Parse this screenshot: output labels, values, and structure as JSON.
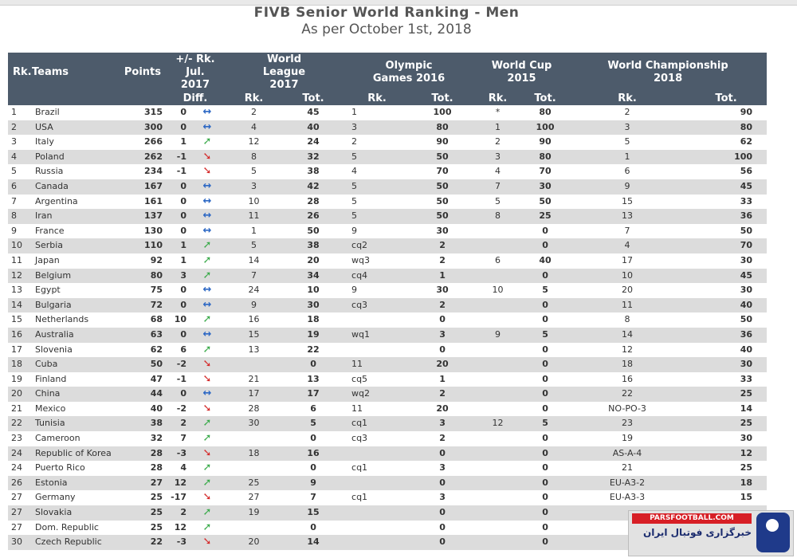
{
  "title": "FIVB Senior World Ranking - Men",
  "subtitle": "As per October 1st, 2018",
  "header": {
    "rk": "Rk.",
    "teams": "Teams",
    "points": "Points",
    "diff_group": "+/- Rk. Jul. 2017",
    "diff": "Diff.",
    "wl": "World League 2017",
    "og": "Olympic Games 2016",
    "wc": "World Cup 2015",
    "wch": "World Championship 2018",
    "sub_rk": "Rk.",
    "sub_tot": "Tot."
  },
  "rows": [
    {
      "rk": "1",
      "team": "Brazil",
      "points": "315",
      "diff": "0",
      "trend": "same",
      "wl_rk": "2",
      "wl_tot": "45",
      "og_rk": "1",
      "og_tot": "100",
      "wc_rk": "*",
      "wc_tot": "80",
      "ch_rk": "2",
      "ch_tot": "90"
    },
    {
      "rk": "2",
      "team": "USA",
      "points": "300",
      "diff": "0",
      "trend": "same",
      "wl_rk": "4",
      "wl_tot": "40",
      "og_rk": "3",
      "og_tot": "80",
      "wc_rk": "1",
      "wc_tot": "100",
      "ch_rk": "3",
      "ch_tot": "80"
    },
    {
      "rk": "3",
      "team": "Italy",
      "points": "266",
      "diff": "1",
      "trend": "up",
      "wl_rk": "12",
      "wl_tot": "24",
      "og_rk": "2",
      "og_tot": "90",
      "wc_rk": "2",
      "wc_tot": "90",
      "ch_rk": "5",
      "ch_tot": "62"
    },
    {
      "rk": "4",
      "team": "Poland",
      "points": "262",
      "diff": "-1",
      "trend": "down",
      "wl_rk": "8",
      "wl_tot": "32",
      "og_rk": "5",
      "og_tot": "50",
      "wc_rk": "3",
      "wc_tot": "80",
      "ch_rk": "1",
      "ch_tot": "100"
    },
    {
      "rk": "5",
      "team": "Russia",
      "points": "234",
      "diff": "-1",
      "trend": "down",
      "wl_rk": "5",
      "wl_tot": "38",
      "og_rk": "4",
      "og_tot": "70",
      "wc_rk": "4",
      "wc_tot": "70",
      "ch_rk": "6",
      "ch_tot": "56"
    },
    {
      "rk": "6",
      "team": "Canada",
      "points": "167",
      "diff": "0",
      "trend": "same",
      "wl_rk": "3",
      "wl_tot": "42",
      "og_rk": "5",
      "og_tot": "50",
      "wc_rk": "7",
      "wc_tot": "30",
      "ch_rk": "9",
      "ch_tot": "45"
    },
    {
      "rk": "7",
      "team": "Argentina",
      "points": "161",
      "diff": "0",
      "trend": "same",
      "wl_rk": "10",
      "wl_tot": "28",
      "og_rk": "5",
      "og_tot": "50",
      "wc_rk": "5",
      "wc_tot": "50",
      "ch_rk": "15",
      "ch_tot": "33"
    },
    {
      "rk": "8",
      "team": "Iran",
      "points": "137",
      "diff": "0",
      "trend": "same",
      "wl_rk": "11",
      "wl_tot": "26",
      "og_rk": "5",
      "og_tot": "50",
      "wc_rk": "8",
      "wc_tot": "25",
      "ch_rk": "13",
      "ch_tot": "36"
    },
    {
      "rk": "9",
      "team": "France",
      "points": "130",
      "diff": "0",
      "trend": "same",
      "wl_rk": "1",
      "wl_tot": "50",
      "og_rk": "9",
      "og_tot": "30",
      "wc_rk": "",
      "wc_tot": "0",
      "ch_rk": "7",
      "ch_tot": "50"
    },
    {
      "rk": "10",
      "team": "Serbia",
      "points": "110",
      "diff": "1",
      "trend": "up",
      "wl_rk": "5",
      "wl_tot": "38",
      "og_rk": "cq2",
      "og_tot": "2",
      "wc_rk": "",
      "wc_tot": "0",
      "ch_rk": "4",
      "ch_tot": "70"
    },
    {
      "rk": "11",
      "team": "Japan",
      "points": "92",
      "diff": "1",
      "trend": "up",
      "wl_rk": "14",
      "wl_tot": "20",
      "og_rk": "wq3",
      "og_tot": "2",
      "wc_rk": "6",
      "wc_tot": "40",
      "ch_rk": "17",
      "ch_tot": "30"
    },
    {
      "rk": "12",
      "team": "Belgium",
      "points": "80",
      "diff": "3",
      "trend": "up",
      "wl_rk": "7",
      "wl_tot": "34",
      "og_rk": "cq4",
      "og_tot": "1",
      "wc_rk": "",
      "wc_tot": "0",
      "ch_rk": "10",
      "ch_tot": "45"
    },
    {
      "rk": "13",
      "team": "Egypt",
      "points": "75",
      "diff": "0",
      "trend": "same",
      "wl_rk": "24",
      "wl_tot": "10",
      "og_rk": "9",
      "og_tot": "30",
      "wc_rk": "10",
      "wc_tot": "5",
      "ch_rk": "20",
      "ch_tot": "30"
    },
    {
      "rk": "14",
      "team": "Bulgaria",
      "points": "72",
      "diff": "0",
      "trend": "same",
      "wl_rk": "9",
      "wl_tot": "30",
      "og_rk": "cq3",
      "og_tot": "2",
      "wc_rk": "",
      "wc_tot": "0",
      "ch_rk": "11",
      "ch_tot": "40"
    },
    {
      "rk": "15",
      "team": "Netherlands",
      "points": "68",
      "diff": "10",
      "trend": "up",
      "wl_rk": "16",
      "wl_tot": "18",
      "og_rk": "",
      "og_tot": "0",
      "wc_rk": "",
      "wc_tot": "0",
      "ch_rk": "8",
      "ch_tot": "50"
    },
    {
      "rk": "16",
      "team": "Australia",
      "points": "63",
      "diff": "0",
      "trend": "same",
      "wl_rk": "15",
      "wl_tot": "19",
      "og_rk": "wq1",
      "og_tot": "3",
      "wc_rk": "9",
      "wc_tot": "5",
      "ch_rk": "14",
      "ch_tot": "36"
    },
    {
      "rk": "17",
      "team": "Slovenia",
      "points": "62",
      "diff": "6",
      "trend": "up",
      "wl_rk": "13",
      "wl_tot": "22",
      "og_rk": "",
      "og_tot": "0",
      "wc_rk": "",
      "wc_tot": "0",
      "ch_rk": "12",
      "ch_tot": "40"
    },
    {
      "rk": "18",
      "team": "Cuba",
      "points": "50",
      "diff": "-2",
      "trend": "down",
      "wl_rk": "",
      "wl_tot": "0",
      "og_rk": "11",
      "og_tot": "20",
      "wc_rk": "",
      "wc_tot": "0",
      "ch_rk": "18",
      "ch_tot": "30"
    },
    {
      "rk": "19",
      "team": "Finland",
      "points": "47",
      "diff": "-1",
      "trend": "down",
      "wl_rk": "21",
      "wl_tot": "13",
      "og_rk": "cq5",
      "og_tot": "1",
      "wc_rk": "",
      "wc_tot": "0",
      "ch_rk": "16",
      "ch_tot": "33"
    },
    {
      "rk": "20",
      "team": "China",
      "points": "44",
      "diff": "0",
      "trend": "same",
      "wl_rk": "17",
      "wl_tot": "17",
      "og_rk": "wq2",
      "og_tot": "2",
      "wc_rk": "",
      "wc_tot": "0",
      "ch_rk": "22",
      "ch_tot": "25"
    },
    {
      "rk": "21",
      "team": "Mexico",
      "points": "40",
      "diff": "-2",
      "trend": "down",
      "wl_rk": "28",
      "wl_tot": "6",
      "og_rk": "11",
      "og_tot": "20",
      "wc_rk": "",
      "wc_tot": "0",
      "ch_rk": "NO-PO-3",
      "ch_tot": "14"
    },
    {
      "rk": "22",
      "team": "Tunisia",
      "points": "38",
      "diff": "2",
      "trend": "up",
      "wl_rk": "30",
      "wl_tot": "5",
      "og_rk": "cq1",
      "og_tot": "3",
      "wc_rk": "12",
      "wc_tot": "5",
      "ch_rk": "23",
      "ch_tot": "25"
    },
    {
      "rk": "23",
      "team": "Cameroon",
      "points": "32",
      "diff": "7",
      "trend": "up",
      "wl_rk": "",
      "wl_tot": "0",
      "og_rk": "cq3",
      "og_tot": "2",
      "wc_rk": "",
      "wc_tot": "0",
      "ch_rk": "19",
      "ch_tot": "30"
    },
    {
      "rk": "24",
      "team": "Republic of Korea",
      "points": "28",
      "diff": "-3",
      "trend": "down",
      "wl_rk": "18",
      "wl_tot": "16",
      "og_rk": "",
      "og_tot": "0",
      "wc_rk": "",
      "wc_tot": "0",
      "ch_rk": "AS-A-4",
      "ch_tot": "12"
    },
    {
      "rk": "24",
      "team": "Puerto Rico",
      "points": "28",
      "diff": "4",
      "trend": "up",
      "wl_rk": "",
      "wl_tot": "0",
      "og_rk": "cq1",
      "og_tot": "3",
      "wc_rk": "",
      "wc_tot": "0",
      "ch_rk": "21",
      "ch_tot": "25"
    },
    {
      "rk": "26",
      "team": "Estonia",
      "points": "27",
      "diff": "12",
      "trend": "up",
      "wl_rk": "25",
      "wl_tot": "9",
      "og_rk": "",
      "og_tot": "0",
      "wc_rk": "",
      "wc_tot": "0",
      "ch_rk": "EU-A3-2",
      "ch_tot": "18"
    },
    {
      "rk": "27",
      "team": "Germany",
      "points": "25",
      "diff": "-17",
      "trend": "down",
      "wl_rk": "27",
      "wl_tot": "7",
      "og_rk": "cq1",
      "og_tot": "3",
      "wc_rk": "",
      "wc_tot": "0",
      "ch_rk": "EU-A3-3",
      "ch_tot": "15"
    },
    {
      "rk": "27",
      "team": "Slovakia",
      "points": "25",
      "diff": "2",
      "trend": "up",
      "wl_rk": "19",
      "wl_tot": "15",
      "og_rk": "",
      "og_tot": "0",
      "wc_rk": "",
      "wc_tot": "0",
      "ch_rk": "",
      "ch_tot": ""
    },
    {
      "rk": "27",
      "team": "Dom. Republic",
      "points": "25",
      "diff": "12",
      "trend": "up",
      "wl_rk": "",
      "wl_tot": "0",
      "og_rk": "",
      "og_tot": "0",
      "wc_rk": "",
      "wc_tot": "0",
      "ch_rk": "",
      "ch_tot": ""
    },
    {
      "rk": "30",
      "team": "Czech Republic",
      "points": "22",
      "diff": "-3",
      "trend": "down",
      "wl_rk": "20",
      "wl_tot": "14",
      "og_rk": "",
      "og_tot": "0",
      "wc_rk": "",
      "wc_tot": "0",
      "ch_rk": "",
      "ch_tot": ""
    }
  ],
  "trend_icons": {
    "same": "↔",
    "up": "➚",
    "down": "➘"
  },
  "colors": {
    "header_bg": "#4d5b6b",
    "stripe": "#dcdcdc",
    "same": "#2d68c4",
    "up": "#3aaa4a",
    "down": "#d42a2a"
  },
  "watermark": {
    "site": "PARSFOOTBALL.COM",
    "text": "خبرگزاری فوتبال ایران"
  }
}
